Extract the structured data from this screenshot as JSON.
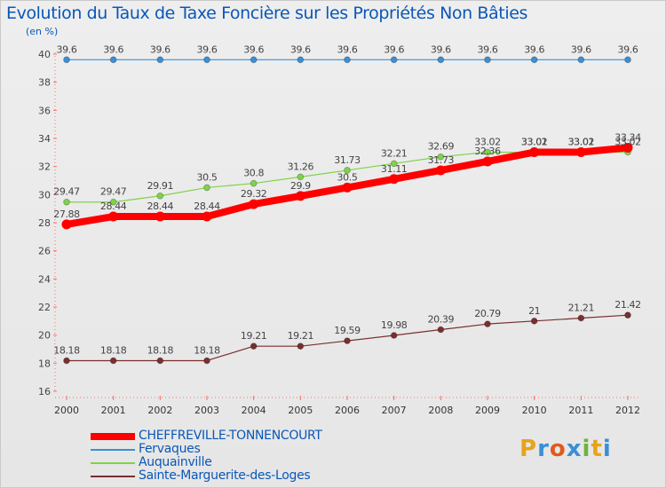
{
  "header": {
    "title": "Evolution du Taux de Taxe Foncière sur les Propriétés Non Bâties",
    "unit": "(en %)"
  },
  "brand": {
    "letters": [
      "P",
      "r",
      "o",
      "x",
      "i",
      "t",
      "i"
    ],
    "colors": [
      "#e8a31c",
      "#3a8fd6",
      "#e05a1f",
      "#3a8fd6",
      "#6cb33e",
      "#e8a31c",
      "#3a8fd6"
    ]
  },
  "chart_data": {
    "type": "line",
    "title": "Evolution du Taux de Taxe Foncière sur les Propriétés Non Bâties",
    "ylabel": "(en %)",
    "xlabel": "",
    "x": [
      "2000",
      "2001",
      "2002",
      "2003",
      "2004",
      "2005",
      "2006",
      "2007",
      "2008",
      "2009",
      "2010",
      "2011",
      "2012"
    ],
    "ylim": [
      16,
      40
    ],
    "yticks": [
      16,
      18,
      20,
      22,
      24,
      26,
      28,
      30,
      32,
      34,
      36,
      38,
      40
    ],
    "grid": false,
    "legend_position": "bottom-left",
    "series": [
      {
        "name": "CHEFFREVILLE-TONNENCOURT",
        "color": "#ff0000",
        "values": [
          27.88,
          28.44,
          28.44,
          28.44,
          29.32,
          29.9,
          30.5,
          31.11,
          31.73,
          32.36,
          33.02,
          33.02,
          33.34
        ],
        "labels": [
          "27.88",
          "28.44",
          "28.44",
          "28.44",
          "29.32",
          "29.9",
          "30.5",
          "31.11",
          "31.73",
          "32.36",
          "33.02",
          "33.02",
          "33.34"
        ]
      },
      {
        "name": "Fervaques",
        "color": "#3a8fd6",
        "values": [
          39.6,
          39.6,
          39.6,
          39.6,
          39.6,
          39.6,
          39.6,
          39.6,
          39.6,
          39.6,
          39.6,
          39.6,
          39.6
        ],
        "labels": [
          "39.6",
          "39.6",
          "39.6",
          "39.6",
          "39.6",
          "39.6",
          "39.6",
          "39.6",
          "39.6",
          "39.6",
          "39.6",
          "39.6",
          "39.6"
        ]
      },
      {
        "name": "Auquainville",
        "color": "#7fd34a",
        "values": [
          29.47,
          29.47,
          29.91,
          30.5,
          30.8,
          31.26,
          31.73,
          32.21,
          32.69,
          33.02,
          33.01,
          33.01,
          33.02
        ],
        "labels": [
          "29.47",
          "29.47",
          "29.91",
          "30.5",
          "30.8",
          "31.26",
          "31.73",
          "32.21",
          "32.69",
          "33.02",
          "33.01",
          "33.01",
          "33.02"
        ]
      },
      {
        "name": "Sainte-Marguerite-des-Loges",
        "color": "#7a2f2f",
        "values": [
          18.18,
          18.18,
          18.18,
          18.18,
          19.21,
          19.21,
          19.59,
          19.98,
          20.39,
          20.79,
          21,
          21.21,
          21.42
        ],
        "labels": [
          "18.18",
          "18.18",
          "18.18",
          "18.18",
          "19.21",
          "19.21",
          "19.59",
          "19.98",
          "20.39",
          "20.79",
          "21",
          "21.21",
          "21.42"
        ]
      }
    ]
  }
}
